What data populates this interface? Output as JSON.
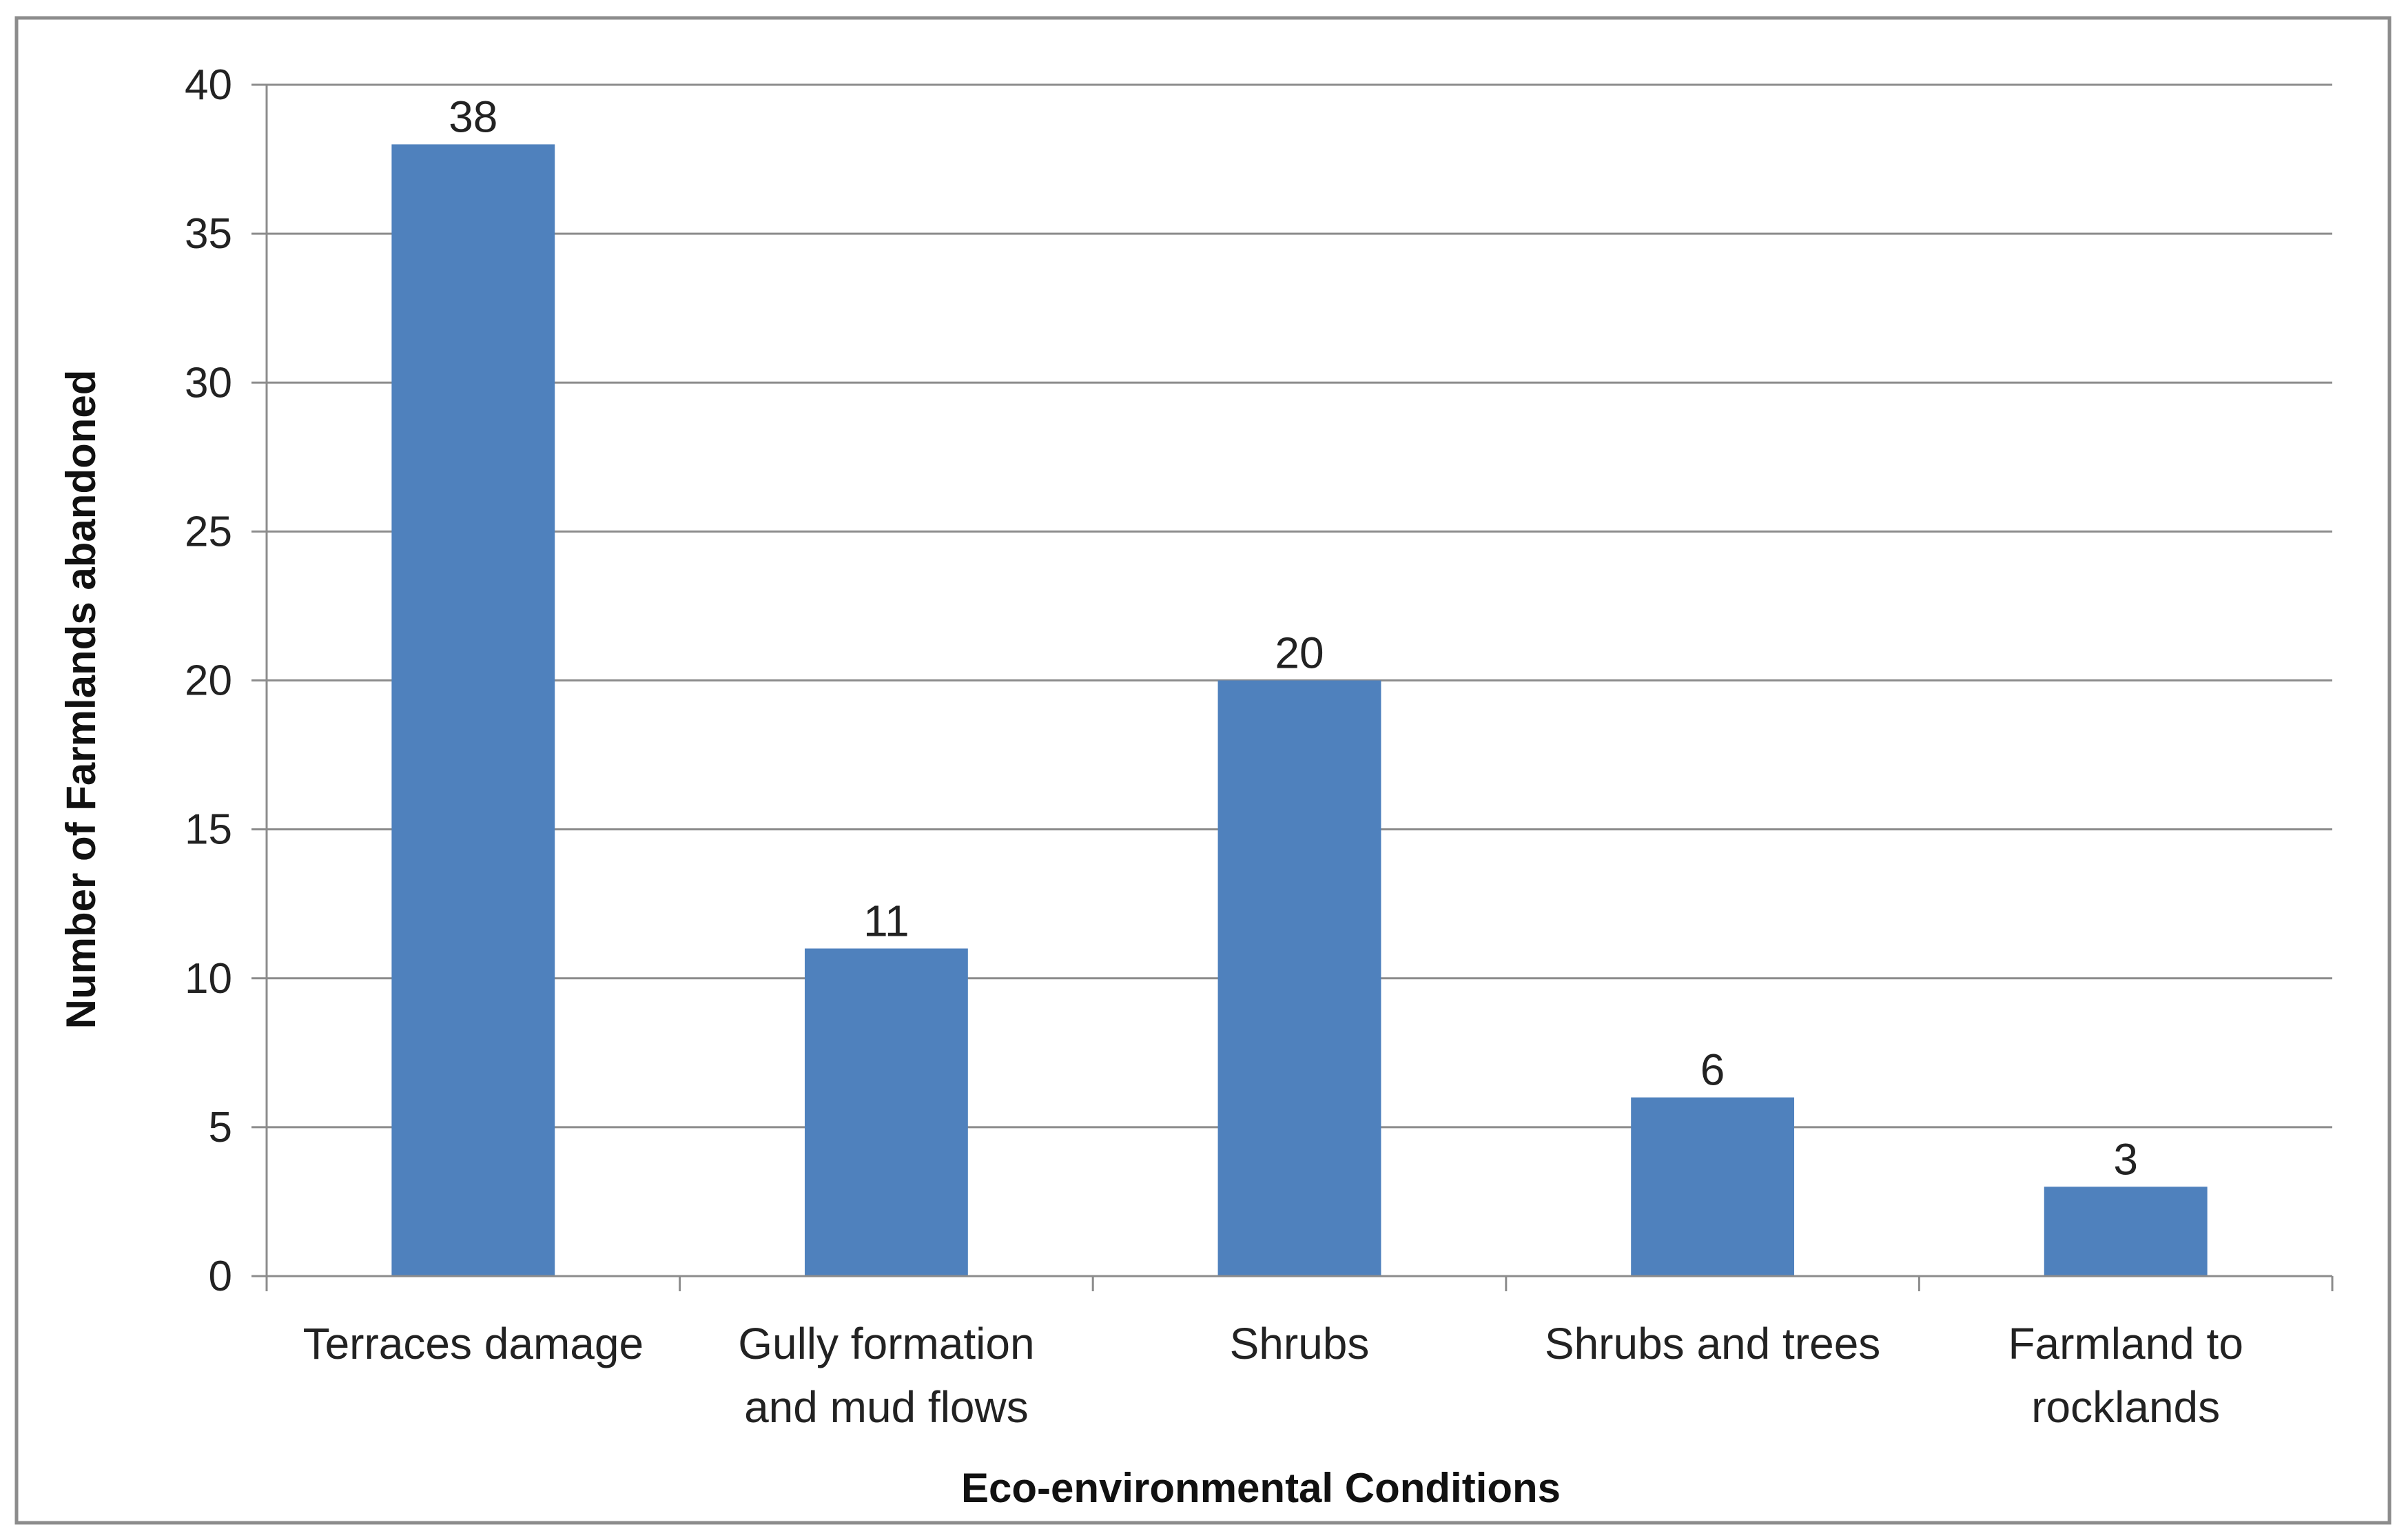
{
  "chart_data": {
    "type": "bar",
    "categories": [
      [
        "Terraces damage"
      ],
      [
        "Gully formation",
        "and mud flows"
      ],
      [
        "Shrubs"
      ],
      [
        "Shrubs and trees"
      ],
      [
        "Farmland to",
        "rocklands"
      ]
    ],
    "values": [
      38,
      11,
      20,
      6,
      3
    ],
    "data_labels": [
      "38",
      "11",
      "20",
      "6",
      "3"
    ],
    "xlabel": "Eco-environmental Conditions",
    "ylabel": "Number  of Farmlands abandoned",
    "ylim": [
      0,
      40
    ],
    "yticks": [
      0,
      5,
      10,
      15,
      20,
      25,
      30,
      35,
      40
    ],
    "grid": true,
    "legend": "none",
    "bar_color": "#4F81BD",
    "grid_color": "#8C8C8C",
    "border_color": "#8C8C8C"
  }
}
